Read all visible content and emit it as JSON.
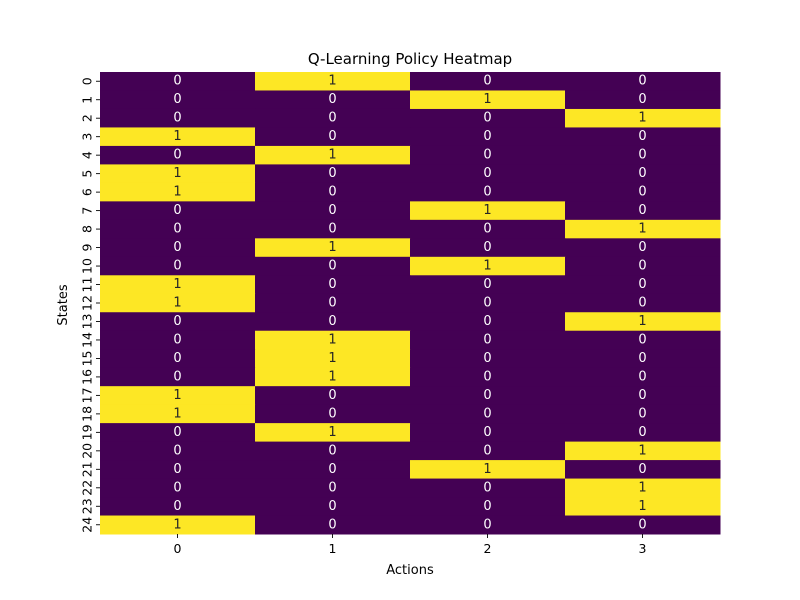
{
  "chart_data": {
    "type": "heatmap",
    "title": "Q-Learning Policy Heatmap",
    "xlabel": "Actions",
    "ylabel": "States",
    "x_categories": [
      "0",
      "1",
      "2",
      "3"
    ],
    "y_categories": [
      "0",
      "1",
      "2",
      "3",
      "4",
      "5",
      "6",
      "7",
      "8",
      "9",
      "10",
      "11",
      "12",
      "13",
      "14",
      "15",
      "16",
      "17",
      "18",
      "19",
      "20",
      "21",
      "22",
      "23",
      "24"
    ],
    "values": [
      [
        0,
        1,
        0,
        0
      ],
      [
        0,
        0,
        1,
        0
      ],
      [
        0,
        0,
        0,
        1
      ],
      [
        1,
        0,
        0,
        0
      ],
      [
        0,
        1,
        0,
        0
      ],
      [
        1,
        0,
        0,
        0
      ],
      [
        1,
        0,
        0,
        0
      ],
      [
        0,
        0,
        1,
        0
      ],
      [
        0,
        0,
        0,
        1
      ],
      [
        0,
        1,
        0,
        0
      ],
      [
        0,
        0,
        1,
        0
      ],
      [
        1,
        0,
        0,
        0
      ],
      [
        1,
        0,
        0,
        0
      ],
      [
        0,
        0,
        0,
        1
      ],
      [
        0,
        1,
        0,
        0
      ],
      [
        0,
        1,
        0,
        0
      ],
      [
        0,
        1,
        0,
        0
      ],
      [
        1,
        0,
        0,
        0
      ],
      [
        1,
        0,
        0,
        0
      ],
      [
        0,
        1,
        0,
        0
      ],
      [
        0,
        0,
        0,
        1
      ],
      [
        0,
        0,
        1,
        0
      ],
      [
        0,
        0,
        0,
        1
      ],
      [
        0,
        0,
        0,
        1
      ],
      [
        1,
        0,
        0,
        0
      ]
    ],
    "colormap": {
      "low_color": "#440154",
      "high_color": "#fde725",
      "low_text_color": "#ffffff",
      "high_text_color": "#262626"
    },
    "grid": false,
    "colorbar": false,
    "annotations": true
  }
}
